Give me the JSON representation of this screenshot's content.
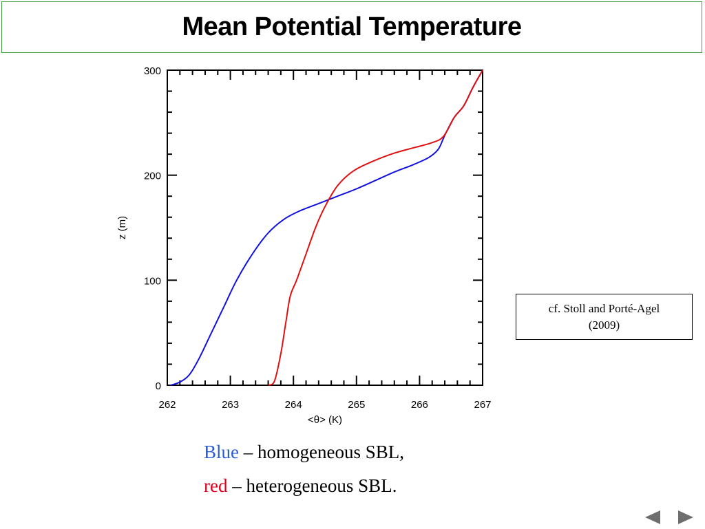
{
  "slide": {
    "title": "Mean Potential Temperature",
    "citation": [
      "cf. Stoll and Porté-Agel",
      "(2009)"
    ],
    "caption": {
      "line1": {
        "colored": "Blue",
        "rest": " – homogeneous SBL,"
      },
      "line2": {
        "colored": "red",
        "rest": " – heterogeneous SBL."
      }
    },
    "nav": {
      "prev_icon": "triangle-left-icon",
      "next_icon": "triangle-right-icon"
    }
  },
  "colors": {
    "title_border": "#3b9a3b",
    "blue": "#1010e0",
    "red": "#e01010",
    "caption_blue": "#2a5bd7",
    "caption_red": "#e0001b",
    "nav_arrow": "#6e6e6e"
  },
  "chart_data": {
    "type": "line",
    "title": "",
    "xlabel": "<θ> (K)",
    "ylabel": "z (m)",
    "xlim": [
      262,
      267
    ],
    "ylim": [
      0,
      300
    ],
    "xticks": [
      "262",
      "263",
      "264",
      "265",
      "266",
      "267"
    ],
    "yticks": [
      "0",
      "100",
      "200",
      "300"
    ],
    "grid": false,
    "series": [
      {
        "color": "blue",
        "x": [
          262.05,
          262.2,
          262.35,
          262.5,
          262.7,
          262.9,
          263.1,
          263.35,
          263.6,
          263.85,
          264.1,
          264.4,
          264.7,
          265.0,
          265.3,
          265.6,
          265.9,
          266.15,
          266.3,
          266.4,
          266.55,
          266.7,
          266.85,
          267.0
        ],
        "y": [
          0,
          3,
          10,
          25,
          50,
          75,
          100,
          125,
          145,
          158,
          166,
          173,
          180,
          187,
          195,
          203,
          210,
          217,
          225,
          238,
          255,
          266,
          284,
          300
        ]
      },
      {
        "color": "red",
        "x": [
          263.6,
          263.7,
          263.8,
          263.88,
          263.95,
          264.05,
          264.2,
          264.35,
          264.5,
          264.7,
          264.95,
          265.25,
          265.6,
          265.9,
          266.2,
          266.38,
          266.55,
          266.7,
          266.85,
          267.0
        ],
        "y": [
          0,
          4,
          30,
          60,
          85,
          100,
          125,
          150,
          170,
          190,
          204,
          213,
          221,
          226,
          231,
          237,
          255,
          266,
          284,
          300
        ]
      }
    ]
  }
}
